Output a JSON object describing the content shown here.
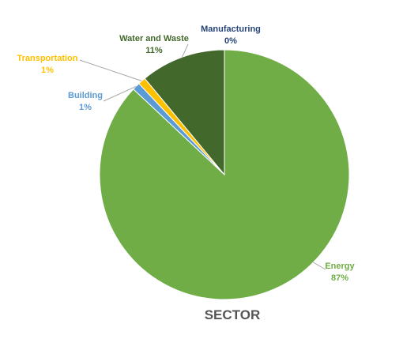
{
  "chart_data": {
    "type": "pie",
    "title": "SECTOR",
    "start_angle_deg": 0,
    "direction": "clockwise",
    "slices": [
      {
        "name": "Energy",
        "value": 87,
        "label": "87%",
        "color": "#70AD47"
      },
      {
        "name": "Building",
        "value": 1,
        "label": "1%",
        "color": "#5B9BD5"
      },
      {
        "name": "Transportation",
        "value": 1,
        "label": "1%",
        "color": "#FFC000"
      },
      {
        "name": "Water and Waste",
        "value": 11,
        "label": "11%",
        "color": "#43682B"
      },
      {
        "name": "Manufacturing",
        "value": 0,
        "label": "0%",
        "color": "#264478"
      }
    ],
    "label_colors": {
      "Energy": "#70AD47",
      "Building": "#5B9BD5",
      "Transportation": "#FFC000",
      "Water and Waste": "#43682B",
      "Manufacturing": "#264478"
    },
    "leader_line_color": "#A6A6A6"
  }
}
